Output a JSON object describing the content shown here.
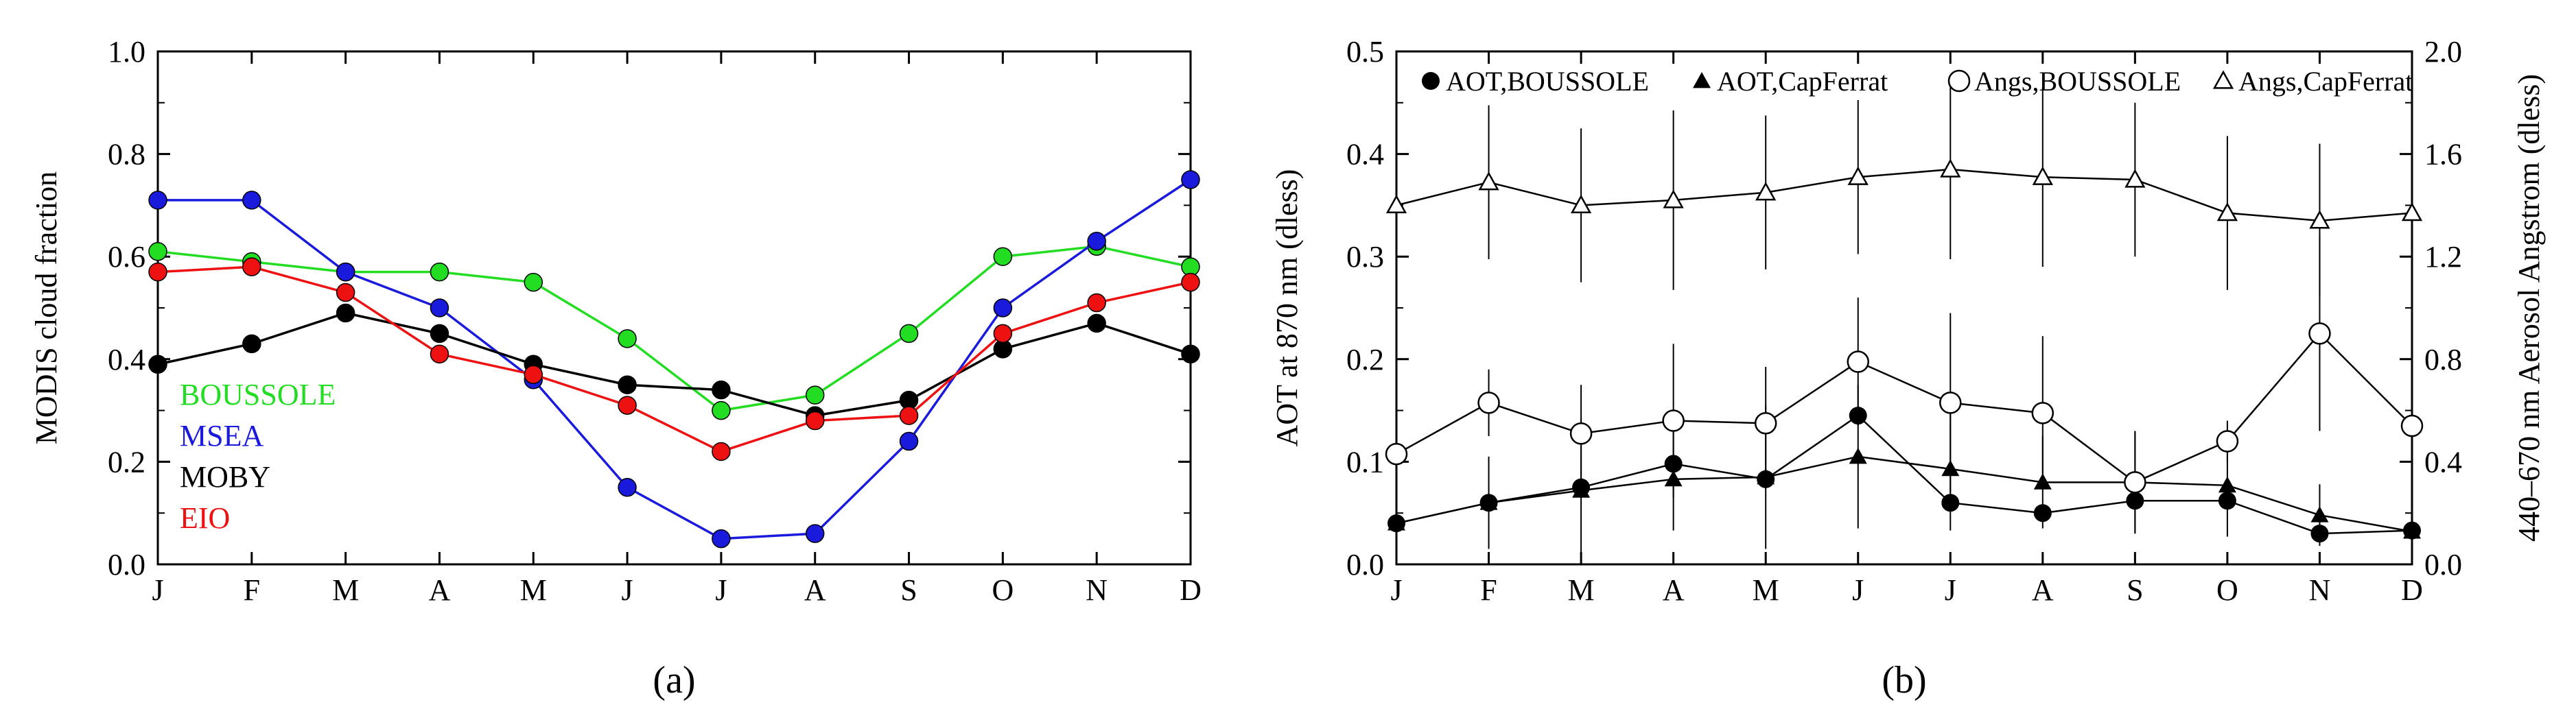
{
  "chart_data": [
    {
      "type": "line",
      "panel_label": "(a)",
      "ylabel": "MODIS cloud fraction",
      "xlabel": "",
      "categories": [
        "J",
        "F",
        "M",
        "A",
        "M",
        "J",
        "J",
        "A",
        "S",
        "O",
        "N",
        "D"
      ],
      "ylim": [
        0.0,
        1.0
      ],
      "yticks": [
        "0.0",
        "0.2",
        "0.4",
        "0.6",
        "0.8",
        "1.0"
      ],
      "legend_position": "left",
      "series": [
        {
          "name": "BOUSSOLE",
          "color": "#22dd22",
          "values": [
            0.61,
            0.59,
            0.57,
            0.57,
            0.55,
            0.44,
            0.3,
            0.33,
            0.45,
            0.6,
            0.62,
            0.58
          ]
        },
        {
          "name": "MSEA",
          "color": "#1a1add",
          "values": [
            0.71,
            0.71,
            0.57,
            0.5,
            0.36,
            0.15,
            0.05,
            0.06,
            0.24,
            0.5,
            0.63,
            0.75
          ]
        },
        {
          "name": "MOBY",
          "color": "#000000",
          "values": [
            0.39,
            0.43,
            0.49,
            0.45,
            0.39,
            0.35,
            0.34,
            0.29,
            0.32,
            0.42,
            0.47,
            0.41
          ]
        },
        {
          "name": "EIO",
          "color": "#ee1111",
          "values": [
            0.57,
            0.58,
            0.53,
            0.41,
            0.37,
            0.31,
            0.22,
            0.28,
            0.29,
            0.45,
            0.51,
            0.55
          ]
        }
      ]
    },
    {
      "type": "line",
      "panel_label": "(b)",
      "ylabel": "AOT at 870 nm (dless)",
      "y2label": "440–670 nm Aerosol Angstrom (dless)",
      "xlabel": "",
      "categories": [
        "J",
        "F",
        "M",
        "A",
        "M",
        "J",
        "J",
        "A",
        "S",
        "O",
        "N",
        "D"
      ],
      "ylim": [
        0.0,
        0.5
      ],
      "y2lim": [
        0.0,
        2.0
      ],
      "yticks": [
        "0.0",
        "0.1",
        "0.2",
        "0.3",
        "0.4",
        "0.5"
      ],
      "y2ticks": [
        "0.0",
        "0.4",
        "0.8",
        "1.2",
        "1.6",
        "2.0"
      ],
      "legend_position": "top",
      "series": [
        {
          "name": "AOT,BOUSSOLE",
          "marker": "filled-circle",
          "axis": "left",
          "values": [
            0.04,
            0.06,
            0.075,
            0.098,
            0.083,
            0.145,
            0.06,
            0.05,
            0.062,
            0.062,
            0.03,
            0.033
          ],
          "err": [
            0.0,
            0.0,
            0.0,
            0.0,
            0.0,
            0.0,
            0.0,
            0.0,
            0.0,
            0.0,
            0.0,
            0.0
          ]
        },
        {
          "name": "AOT,CapFerrat",
          "marker": "filled-triangle",
          "axis": "left",
          "values": [
            0.04,
            0.06,
            0.072,
            0.083,
            0.085,
            0.105,
            0.093,
            0.08,
            0.08,
            0.077,
            0.048,
            0.032
          ],
          "err": [
            0.03,
            0.045,
            0.07,
            0.05,
            0.07,
            0.07,
            0.06,
            0.045,
            0.05,
            0.05,
            0.03,
            0.02
          ]
        },
        {
          "name": "Angs,BOUSSOLE",
          "marker": "open-circle",
          "axis": "right",
          "values": [
            0.43,
            0.63,
            0.51,
            0.56,
            0.55,
            0.79,
            0.63,
            0.59,
            0.32,
            0.48,
            0.9,
            0.54
          ],
          "err": [
            0.28,
            0.13,
            0.19,
            0.3,
            0.22,
            0.25,
            0.35,
            0.3,
            0.2,
            0.08,
            0.38,
            0.1
          ]
        },
        {
          "name": "Angs,CapFerrat",
          "marker": "open-triangle",
          "axis": "right",
          "values": [
            1.4,
            1.49,
            1.4,
            1.42,
            1.45,
            1.51,
            1.54,
            1.51,
            1.5,
            1.37,
            1.34,
            1.37
          ],
          "err": [
            0.3,
            0.3,
            0.3,
            0.35,
            0.3,
            0.3,
            0.35,
            0.35,
            0.3,
            0.3,
            0.3,
            0.3
          ]
        }
      ]
    }
  ]
}
